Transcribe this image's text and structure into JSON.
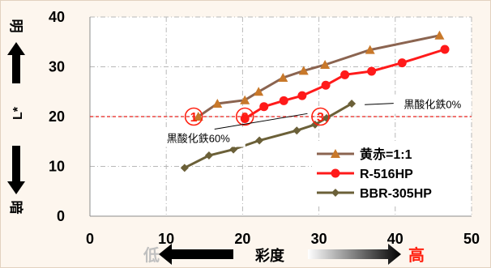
{
  "chart_data": {
    "type": "line",
    "title": "",
    "xlabel": "彩度",
    "ylabel": "L*",
    "xlim": [
      0,
      50
    ],
    "ylim": [
      0,
      40
    ],
    "x_ticks": [
      "0",
      "10",
      "20",
      "30",
      "40",
      "50"
    ],
    "y_ticks": [
      "0",
      "10",
      "20",
      "30",
      "40"
    ],
    "x_axis_low_label": "低",
    "x_axis_high_label": "高",
    "y_axis_top_label": "明",
    "y_axis_bottom_label": "暗",
    "grid": true,
    "legend_position": "bottom-right",
    "reference_line": {
      "y": 20,
      "color": "#e8201a",
      "style": "dashed"
    },
    "series": [
      {
        "name": "黄赤=1:1",
        "color": "#8b6450",
        "marker": "triangle",
        "marker_color": "#c8782a",
        "points": [
          [
            14.2,
            20.0
          ],
          [
            16.7,
            22.6
          ],
          [
            20.3,
            23.3
          ],
          [
            22.1,
            25.0
          ],
          [
            25.3,
            27.8
          ],
          [
            28.0,
            29.2
          ],
          [
            30.8,
            30.4
          ],
          [
            36.7,
            33.4
          ],
          [
            45.8,
            36.3
          ]
        ]
      },
      {
        "name": "R-516HP",
        "color": "#ff1a1a",
        "marker": "circle",
        "marker_color": "#ff1a1a",
        "points": [
          [
            20.3,
            19.6
          ],
          [
            22.8,
            22.0
          ],
          [
            25.4,
            23.2
          ],
          [
            27.8,
            24.2
          ],
          [
            30.9,
            26.3
          ],
          [
            33.4,
            28.4
          ],
          [
            36.9,
            29.1
          ],
          [
            40.9,
            30.8
          ],
          [
            46.5,
            33.5
          ]
        ]
      },
      {
        "name": "BBR-305HP",
        "color": "#6b6038",
        "marker": "diamond",
        "marker_color": "#6b6038",
        "points": [
          [
            12.4,
            9.7
          ],
          [
            15.6,
            12.2
          ],
          [
            18.8,
            13.4
          ],
          [
            22.2,
            15.2
          ],
          [
            27.1,
            17.2
          ],
          [
            29.5,
            18.4
          ],
          [
            31.0,
            19.7
          ],
          [
            34.3,
            22.6
          ]
        ]
      }
    ],
    "annotations": [
      {
        "text": "①",
        "x": 13.6,
        "y": 20.0
      },
      {
        "text": "②",
        "x": 20.3,
        "y": 20.0
      },
      {
        "text": "③",
        "x": 30.2,
        "y": 20.0
      },
      {
        "text": "黒酸化鉄0%",
        "x": 40.0,
        "y": 22.5
      },
      {
        "text": "黒酸化鉄60%",
        "x": 14.2,
        "y": 15.7
      }
    ]
  }
}
